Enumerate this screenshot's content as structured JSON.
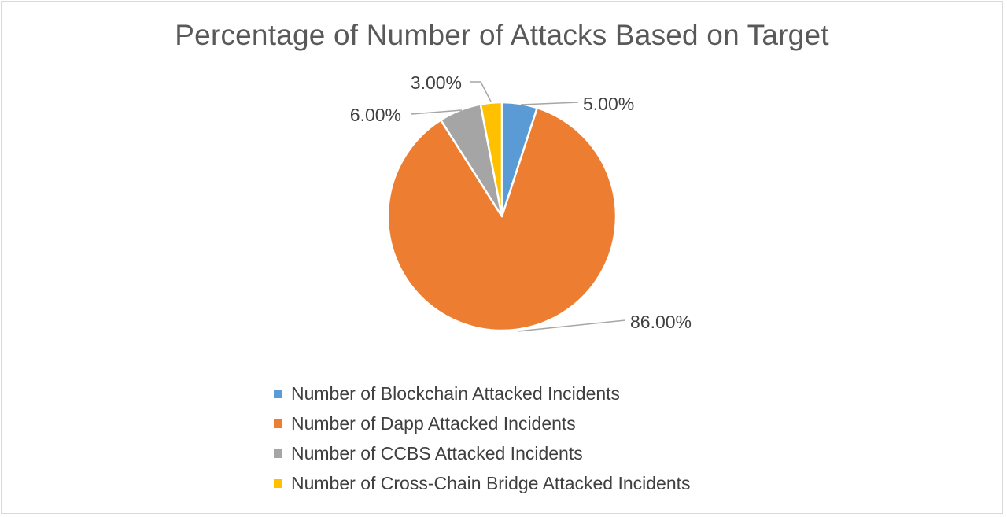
{
  "chart_data": {
    "type": "pie",
    "title": "Percentage of Number of Attacks Based on Target",
    "slices": [
      {
        "label": "Number of Blockchain Attacked Incidents",
        "value": 5.0,
        "display": "5.00%",
        "color": "#5b9bd5"
      },
      {
        "label": "Number of Dapp Attacked Incidents",
        "value": 86.0,
        "display": "86.00%",
        "color": "#ed7d31"
      },
      {
        "label": "Number of CCBS Attacked Incidents",
        "value": 6.0,
        "display": "6.00%",
        "color": "#a5a5a5"
      },
      {
        "label": "Number of Cross-Chain Bridge Attacked Incidents",
        "value": 3.0,
        "display": "3.00%",
        "color": "#ffc000"
      }
    ],
    "legend_position": "bottom",
    "data_labels": "outside-with-leader-lines"
  }
}
